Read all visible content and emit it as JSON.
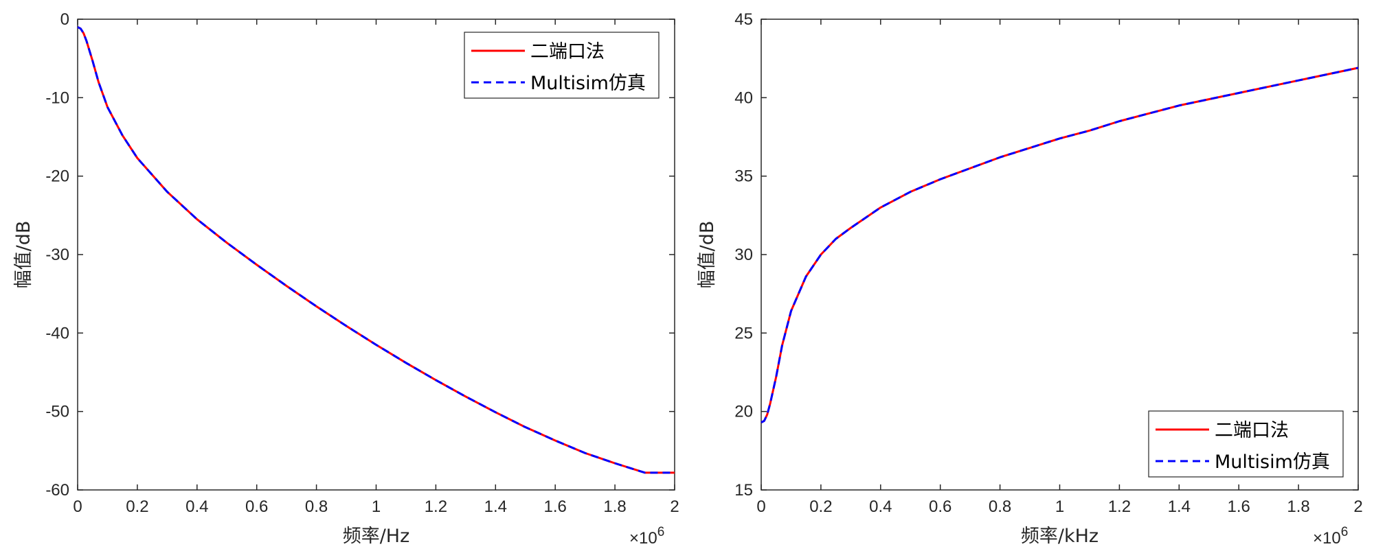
{
  "colors": {
    "series_solid": "#ff0000",
    "series_dashed": "#0000ff",
    "axis": "#262626",
    "background": "#ffffff"
  },
  "chart_data": [
    {
      "type": "line",
      "xlabel": "频率/Hz",
      "ylabel": "幅值/dB",
      "x_multiplier_label": "×10",
      "x_multiplier_exponent": "6",
      "xlim": [
        0,
        2
      ],
      "ylim": [
        -60,
        0
      ],
      "xticks": [
        "0",
        "0.2",
        "0.4",
        "0.6",
        "0.8",
        "1",
        "1.2",
        "1.4",
        "1.6",
        "1.8",
        "2"
      ],
      "yticks": [
        "0",
        "-10",
        "-20",
        "-30",
        "-40",
        "-50",
        "-60"
      ],
      "grid": false,
      "legend_position": "top-right",
      "series": [
        {
          "name": "二端口法",
          "style": "solid",
          "x": [
            0,
            0.01,
            0.02,
            0.03,
            0.05,
            0.07,
            0.1,
            0.15,
            0.2,
            0.3,
            0.4,
            0.5,
            0.6,
            0.7,
            0.8,
            0.9,
            1.0,
            1.1,
            1.2,
            1.3,
            1.4,
            1.5,
            1.6,
            1.7,
            1.8,
            1.9,
            2.0
          ],
          "y": [
            -1.0,
            -1.2,
            -1.8,
            -2.8,
            -5.3,
            -8.0,
            -11.2,
            -14.8,
            -17.7,
            -22.0,
            -25.5,
            -28.5,
            -31.3,
            -34.0,
            -36.6,
            -39.1,
            -41.5,
            -43.8,
            -46.0,
            -48.1,
            -50.1,
            -52.0,
            -53.7,
            -55.3,
            -56.6,
            -57.8,
            -57.8
          ]
        },
        {
          "name": "Multisim仿真",
          "style": "dashed",
          "x": [
            0,
            0.01,
            0.02,
            0.03,
            0.05,
            0.07,
            0.1,
            0.15,
            0.2,
            0.3,
            0.4,
            0.5,
            0.6,
            0.7,
            0.8,
            0.9,
            1.0,
            1.1,
            1.2,
            1.3,
            1.4,
            1.5,
            1.6,
            1.7,
            1.8,
            1.9,
            2.0
          ],
          "y": [
            -1.0,
            -1.2,
            -1.8,
            -2.8,
            -5.3,
            -8.0,
            -11.2,
            -14.8,
            -17.7,
            -22.0,
            -25.5,
            -28.5,
            -31.3,
            -34.0,
            -36.6,
            -39.1,
            -41.5,
            -43.8,
            -46.0,
            -48.1,
            -50.1,
            -52.0,
            -53.7,
            -55.3,
            -56.6,
            -57.8,
            -57.8
          ]
        }
      ]
    },
    {
      "type": "line",
      "xlabel": "频率/kHz",
      "ylabel": "幅值/dB",
      "x_multiplier_label": "×10",
      "x_multiplier_exponent": "6",
      "xlim": [
        0,
        2
      ],
      "ylim": [
        15,
        45
      ],
      "xticks": [
        "0",
        "0.2",
        "0.4",
        "0.6",
        "0.8",
        "1",
        "1.2",
        "1.4",
        "1.6",
        "1.8",
        "2"
      ],
      "yticks": [
        "45",
        "40",
        "35",
        "30",
        "25",
        "20",
        "15"
      ],
      "grid": false,
      "legend_position": "bottom-right",
      "series": [
        {
          "name": "二端口法",
          "style": "solid",
          "x": [
            0,
            0.01,
            0.02,
            0.03,
            0.05,
            0.07,
            0.1,
            0.15,
            0.2,
            0.25,
            0.3,
            0.4,
            0.5,
            0.6,
            0.7,
            0.8,
            0.9,
            1.0,
            1.1,
            1.2,
            1.3,
            1.4,
            1.5,
            1.6,
            1.7,
            1.8,
            1.9,
            2.0
          ],
          "y": [
            19.3,
            19.4,
            19.8,
            20.5,
            22.2,
            24.2,
            26.4,
            28.6,
            30.0,
            31.0,
            31.7,
            33.0,
            34.0,
            34.8,
            35.5,
            36.2,
            36.8,
            37.4,
            37.9,
            38.5,
            39.0,
            39.5,
            39.9,
            40.3,
            40.7,
            41.1,
            41.5,
            41.9
          ]
        },
        {
          "name": "Multisim仿真",
          "style": "dashed",
          "x": [
            0,
            0.01,
            0.02,
            0.03,
            0.05,
            0.07,
            0.1,
            0.15,
            0.2,
            0.25,
            0.3,
            0.4,
            0.5,
            0.6,
            0.7,
            0.8,
            0.9,
            1.0,
            1.1,
            1.2,
            1.3,
            1.4,
            1.5,
            1.6,
            1.7,
            1.8,
            1.9,
            2.0
          ],
          "y": [
            19.3,
            19.4,
            19.8,
            20.5,
            22.2,
            24.2,
            26.4,
            28.6,
            30.0,
            31.0,
            31.7,
            33.0,
            34.0,
            34.8,
            35.5,
            36.2,
            36.8,
            37.4,
            37.9,
            38.5,
            39.0,
            39.5,
            39.9,
            40.3,
            40.7,
            41.1,
            41.5,
            41.9
          ]
        }
      ]
    }
  ]
}
